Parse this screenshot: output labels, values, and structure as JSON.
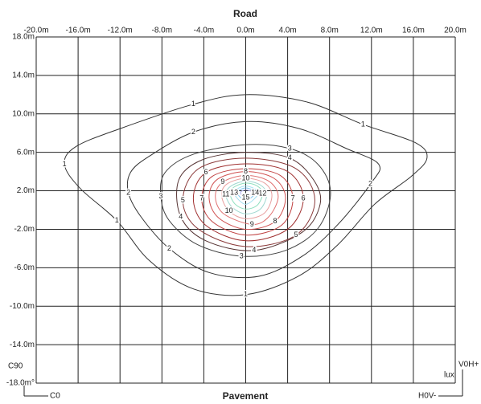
{
  "chart_data": {
    "type": "contour",
    "title": "Road",
    "xlabel": "Pavement",
    "corner_labels": [
      "C90",
      "V0H+",
      "lux",
      "C0",
      "H0V-"
    ],
    "xlim": [
      -20,
      20
    ],
    "ylim": [
      -18,
      18
    ],
    "grid": true,
    "xticks": [
      {
        "value": -20,
        "label": "-20.0m"
      },
      {
        "value": -16,
        "label": "-16.0m"
      },
      {
        "value": -12,
        "label": "-12.0m"
      },
      {
        "value": -8,
        "label": "-8.0m"
      },
      {
        "value": -4,
        "label": "-4.0m"
      },
      {
        "value": 0,
        "label": "0.0m"
      },
      {
        "value": 4,
        "label": "4.0m"
      },
      {
        "value": 8,
        "label": "8.0m"
      },
      {
        "value": 12,
        "label": "12.0m"
      },
      {
        "value": 16,
        "label": "16.0m"
      },
      {
        "value": 20,
        "label": "20.0m"
      }
    ],
    "yticks": [
      {
        "value": 18,
        "label": "18.0m"
      },
      {
        "value": 14,
        "label": "14.0m"
      },
      {
        "value": 10,
        "label": "10.0m"
      },
      {
        "value": 6,
        "label": "6.0m"
      },
      {
        "value": 2,
        "label": "2.0m"
      },
      {
        "value": -2,
        "label": "-2.0m"
      },
      {
        "value": -6,
        "label": "-6.0m"
      },
      {
        "value": -10,
        "label": "-10.0m"
      },
      {
        "value": -14,
        "label": "-14.0m"
      },
      {
        "value": -18,
        "label": "-18.0m°"
      }
    ],
    "series": [
      {
        "level": 1,
        "color": "#333333",
        "x": [
          -17.3,
          -16.2,
          -11.9,
          -5.0,
          0,
          5.8,
          11.2,
          16.2,
          17.3,
          15.8,
          12.3,
          8.8,
          5.0,
          0,
          -5.0,
          -9.2,
          -12.3,
          -15.8
        ],
        "y": [
          4.75,
          6.6,
          8.5,
          11.0,
          12.0,
          11.25,
          8.9,
          7.0,
          5.4,
          3.5,
          0.6,
          -3.6,
          -6.9,
          -8.8,
          -8.2,
          -5.25,
          -1.1,
          2.25
        ]
      },
      {
        "level": 2,
        "color": "#333333",
        "x": [
          -11.0,
          -9.2,
          -5.0,
          0,
          5.0,
          9.6,
          12.7,
          11.9,
          8.8,
          5.4,
          1.2,
          -3.5,
          -7.3,
          -10.0,
          -11.2
        ],
        "y": [
          3.9,
          5.6,
          8.1,
          9.2,
          8.5,
          6.4,
          4.75,
          2.7,
          -1.5,
          -4.8,
          -6.9,
          -6.5,
          -4.0,
          -0.7,
          1.8
        ]
      },
      {
        "level": 3,
        "color": "#444444",
        "x": [
          -7.7,
          -5.0,
          0,
          4.2,
          6.9,
          8.1,
          6.9,
          3.8,
          -0.4,
          -4.6,
          -7.3,
          -8.1
        ],
        "y": [
          3.9,
          5.8,
          6.8,
          6.4,
          4.75,
          1.8,
          -1.9,
          -4.2,
          -4.8,
          -3.6,
          -1.1,
          1.4
        ]
      },
      {
        "level": 4,
        "color": "#553333",
        "x": [
          -6.4,
          -4.2,
          0,
          4.2,
          6.5,
          7.1,
          5.4,
          0.8,
          -3.8,
          -6.2
        ],
        "y": [
          3.1,
          5.2,
          6.0,
          5.4,
          3.1,
          0.6,
          -2.3,
          -4.2,
          -3.2,
          -0.7
        ]
      },
      {
        "level": 5,
        "color": "#8b3a3a",
        "x": [
          6.6,
          4.8,
          0,
          -4.5,
          -6.0,
          -4.5,
          0,
          4.8
        ],
        "y": [
          1.0,
          4.3,
          5.4,
          4.3,
          1.0,
          -2.0,
          -3.8,
          -2.6
        ]
      },
      {
        "level": 6,
        "color": "#a03030",
        "x": [
          5.5,
          4.0,
          0,
          -3.8,
          -5.0,
          -3.8,
          0,
          4.0
        ],
        "y": [
          1.2,
          4.0,
          4.8,
          3.9,
          1.2,
          -1.6,
          -3.2,
          -2.0
        ]
      },
      {
        "level": 7,
        "color": "#c04040",
        "x": [
          4.5,
          3.3,
          0,
          -3.2,
          -4.2,
          -3.2,
          0,
          3.4
        ],
        "y": [
          1.2,
          3.6,
          4.3,
          3.5,
          1.2,
          -1.2,
          -2.6,
          -1.6
        ]
      },
      {
        "level": 8,
        "color": "#d05050",
        "x": [
          3.8,
          2.7,
          0,
          -2.7,
          -3.5,
          -2.6,
          0,
          2.8
        ],
        "y": [
          1.3,
          3.3,
          4.0,
          3.2,
          1.3,
          -0.8,
          -2.0,
          -1.2
        ]
      },
      {
        "level": 9,
        "color": "#e07070",
        "x": [
          3.1,
          2.2,
          0,
          -2.2,
          -2.9,
          -2.1,
          0.6,
          2.2
        ],
        "y": [
          1.4,
          3.0,
          3.6,
          2.9,
          1.4,
          -0.4,
          -1.5,
          -0.7
        ]
      },
      {
        "level": 10,
        "color": "#e8a0a0",
        "x": [
          2.5,
          1.8,
          0,
          -1.8,
          -2.3,
          -1.6,
          0,
          1.8
        ],
        "y": [
          1.5,
          2.8,
          3.3,
          2.7,
          1.5,
          -0.1,
          -0.9,
          -0.3
        ]
      },
      {
        "level": 11,
        "color": "#a0d8d0",
        "x": [
          2.0,
          1.4,
          0,
          -1.4,
          -1.9,
          -1.3,
          0,
          1.4
        ],
        "y": [
          1.6,
          2.6,
          3.0,
          2.5,
          1.6,
          0.3,
          -0.4,
          0.1
        ]
      },
      {
        "level": 12,
        "color": "#90e0c0",
        "x": [
          1.6,
          1.1,
          0,
          -1.1,
          -1.5,
          -1.0,
          0,
          1.1
        ],
        "y": [
          1.7,
          2.5,
          2.8,
          2.4,
          1.7,
          0.6,
          0.1,
          0.5
        ]
      },
      {
        "level": 13,
        "color": "#a0e0f0",
        "x": [
          1.2,
          0,
          -1.1,
          0
        ],
        "y": [
          1.8,
          2.5,
          1.8,
          0.6
        ]
      },
      {
        "level": 14,
        "color": "#80c8f0",
        "x": [
          0.9,
          0,
          -0.8,
          0
        ],
        "y": [
          1.8,
          2.3,
          1.8,
          1.0
        ]
      },
      {
        "level": 15,
        "color": "#b0b0f0",
        "x": [
          0.6,
          0,
          -0.5,
          0
        ],
        "y": [
          1.8,
          2.1,
          1.8,
          1.3
        ]
      }
    ]
  }
}
